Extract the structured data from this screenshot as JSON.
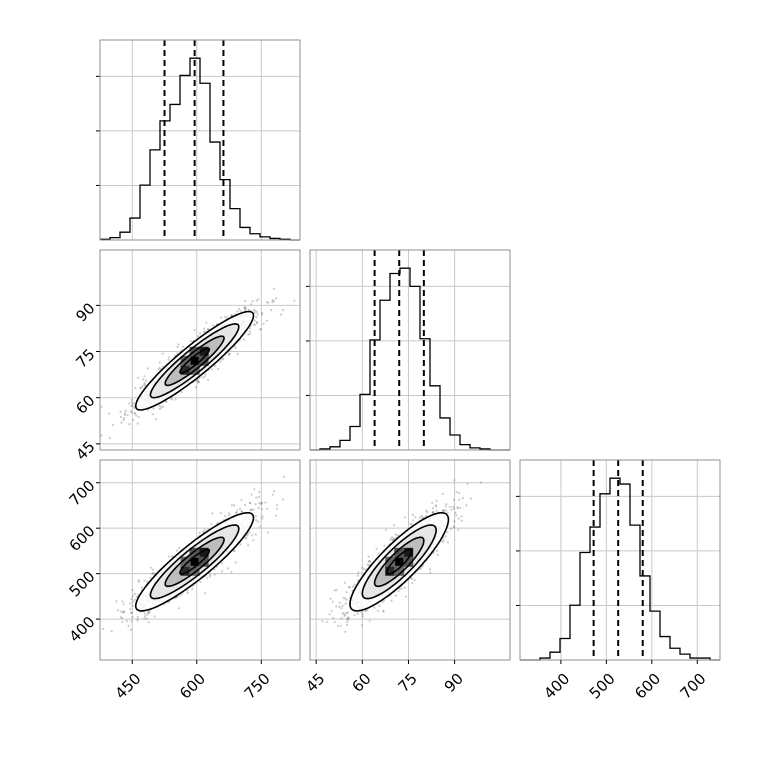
{
  "chart_data": {
    "type": "corner",
    "grid": true,
    "title": "",
    "variables": [
      {
        "label": "",
        "range": [
          375,
          840
        ]
      },
      {
        "label": "",
        "range": [
          43,
          108
        ]
      },
      {
        "label": "",
        "range": [
          310,
          750
        ]
      }
    ],
    "ticks": [
      [
        450,
        600,
        750
      ],
      [
        45,
        60,
        75,
        90
      ],
      [
        400,
        500,
        600,
        700
      ]
    ],
    "tick_labels": [
      [
        "450",
        "600",
        "750"
      ],
      [
        "45",
        "60",
        "75",
        "90"
      ],
      [
        "400",
        "500",
        "600",
        "700"
      ]
    ],
    "quantiles": [
      [
        525,
        595,
        662
      ],
      [
        64,
        72,
        80
      ],
      [
        472,
        526,
        580
      ]
    ],
    "histograms": [
      {
        "edges_start": 375,
        "bin_width": 23.25,
        "counts": [
          1,
          3,
          10,
          28,
          70,
          115,
          152,
          173,
          210,
          232,
          200,
          125,
          77,
          40,
          16,
          8,
          4,
          2,
          1,
          0
        ]
      },
      {
        "edges_start": 43,
        "bin_width": 3.25,
        "counts": [
          0,
          1,
          3,
          9,
          22,
          52,
          103,
          140,
          165,
          170,
          153,
          104,
          60,
          30,
          14,
          5,
          2,
          1,
          0,
          0
        ]
      },
      {
        "edges_start": 310,
        "bin_width": 22,
        "counts": [
          0,
          0,
          1,
          4,
          11,
          28,
          55,
          68,
          85,
          93,
          90,
          69,
          43,
          25,
          12,
          6,
          3,
          1,
          1,
          0
        ]
      }
    ],
    "correlations": [
      {
        "x_var": 0,
        "y_var": 1,
        "rho": 0.92
      },
      {
        "x_var": 0,
        "y_var": 2,
        "rho": 0.9
      },
      {
        "x_var": 1,
        "y_var": 2,
        "rho": 0.86
      }
    ],
    "colors": {
      "line": "#000000",
      "grid": "#c8c8c8",
      "frame": "#8f8f8f",
      "points": "#555555"
    }
  }
}
